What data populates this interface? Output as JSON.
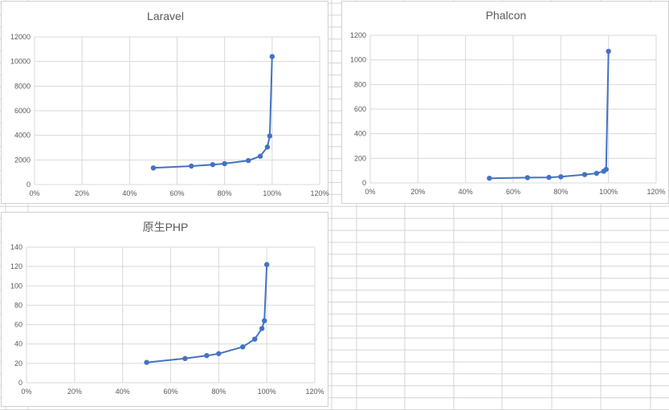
{
  "colors": {
    "series": "#4472c4",
    "gridline": "#d9d9d9",
    "sheet_grid": "#d4d4d4",
    "text": "#595959"
  },
  "chart_data": [
    {
      "type": "line",
      "title": "Laravel",
      "xlabel": "",
      "ylabel": "",
      "x_axis_format": "percent",
      "xlim": [
        0,
        1.2
      ],
      "ylim": [
        0,
        12000
      ],
      "x_ticks": [
        0,
        0.2,
        0.4,
        0.6,
        0.8,
        1.0,
        1.2
      ],
      "x_tick_labels": [
        "0%",
        "20%",
        "40%",
        "60%",
        "80%",
        "100%",
        "120%"
      ],
      "y_ticks": [
        0,
        2000,
        4000,
        6000,
        8000,
        10000,
        12000
      ],
      "y_tick_labels": [
        "0",
        "2000",
        "4000",
        "6000",
        "8000",
        "10000",
        "12000"
      ],
      "grid": "both",
      "legend": "none",
      "series": [
        {
          "x": [
            0.5,
            0.66,
            0.75,
            0.8,
            0.9,
            0.95,
            0.98,
            0.99,
            1.0
          ],
          "y": [
            1350,
            1500,
            1620,
            1700,
            1950,
            2300,
            3050,
            3950,
            10400
          ]
        }
      ]
    },
    {
      "type": "line",
      "title": "Phalcon",
      "xlabel": "",
      "ylabel": "",
      "x_axis_format": "percent",
      "xlim": [
        0,
        1.2
      ],
      "ylim": [
        0,
        1200
      ],
      "x_ticks": [
        0,
        0.2,
        0.4,
        0.6,
        0.8,
        1.0,
        1.2
      ],
      "x_tick_labels": [
        "0%",
        "20%",
        "40%",
        "60%",
        "80%",
        "100%",
        "120%"
      ],
      "y_ticks": [
        0,
        200,
        400,
        600,
        800,
        1000,
        1200
      ],
      "y_tick_labels": [
        "0",
        "200",
        "400",
        "600",
        "800",
        "1000",
        "1200"
      ],
      "grid": "both",
      "legend": "none",
      "series": [
        {
          "x": [
            0.5,
            0.66,
            0.75,
            0.8,
            0.9,
            0.95,
            0.98,
            0.99,
            1.0
          ],
          "y": [
            38,
            43,
            45,
            50,
            68,
            78,
            95,
            110,
            1070
          ]
        }
      ]
    },
    {
      "type": "line",
      "title": "原生PHP",
      "xlabel": "",
      "ylabel": "",
      "x_axis_format": "percent",
      "xlim": [
        0,
        1.2
      ],
      "ylim": [
        0,
        140
      ],
      "x_ticks": [
        0,
        0.2,
        0.4,
        0.6,
        0.8,
        1.0,
        1.2
      ],
      "x_tick_labels": [
        "0%",
        "20%",
        "40%",
        "60%",
        "80%",
        "100%",
        "120%"
      ],
      "y_ticks": [
        0,
        20,
        40,
        60,
        80,
        100,
        120,
        140
      ],
      "y_tick_labels": [
        "0",
        "20",
        "40",
        "60",
        "80",
        "100",
        "120",
        "140"
      ],
      "grid": "both",
      "legend": "none",
      "series": [
        {
          "x": [
            0.5,
            0.66,
            0.75,
            0.8,
            0.9,
            0.95,
            0.98,
            0.99,
            1.0
          ],
          "y": [
            21,
            25,
            28,
            30,
            37,
            45,
            56,
            64,
            122
          ]
        }
      ]
    }
  ]
}
